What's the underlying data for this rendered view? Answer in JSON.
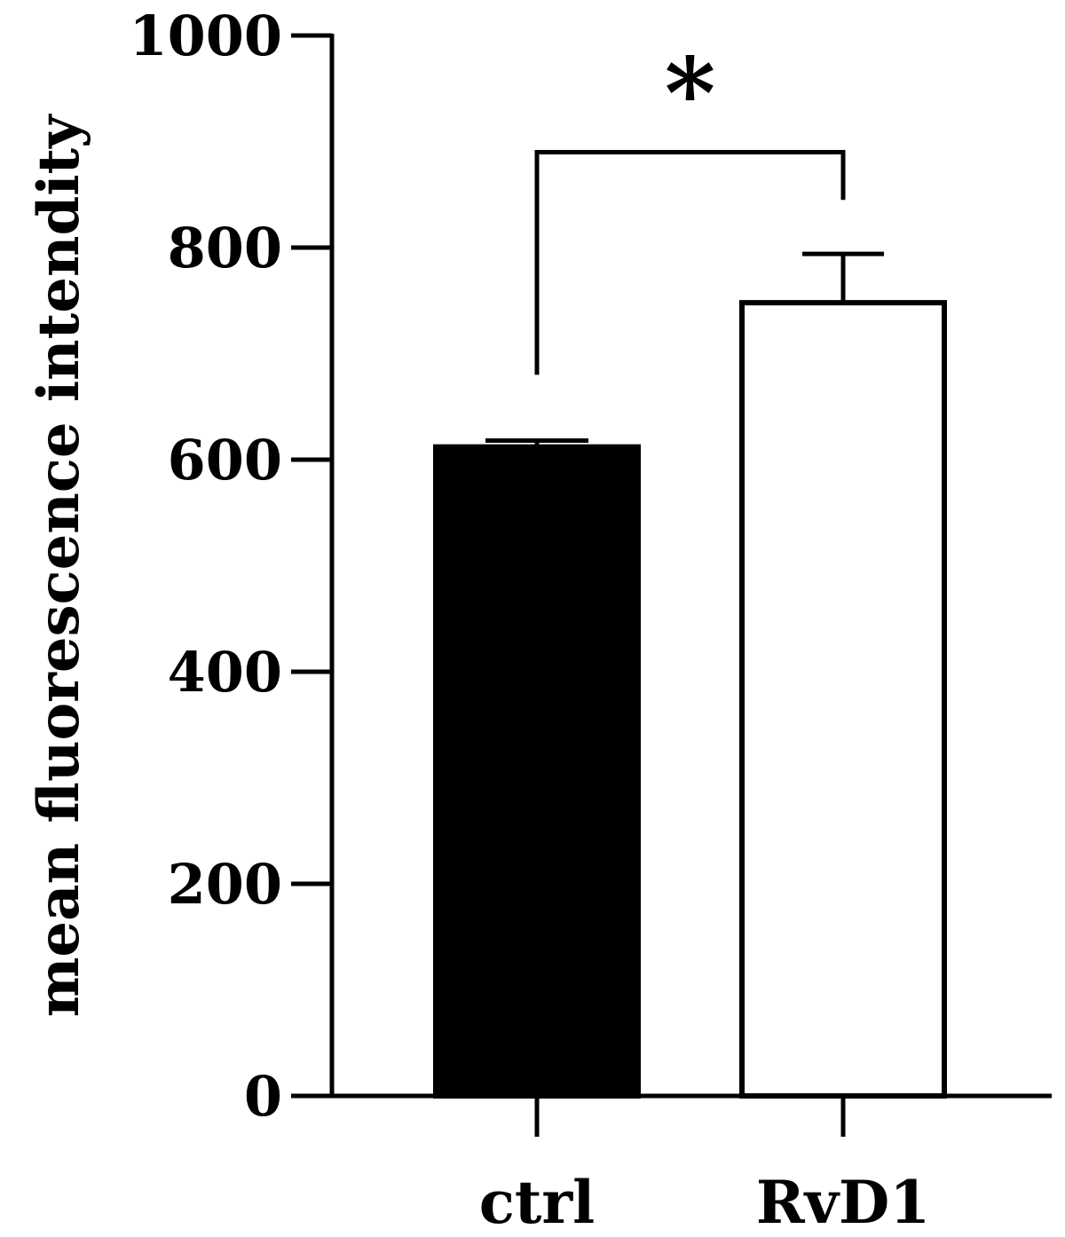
{
  "chart_data": {
    "type": "bar",
    "title": "",
    "xlabel": "",
    "ylabel": "mean fluorescence intendity",
    "ylim": [
      0,
      1000
    ],
    "yticks": [
      0,
      200,
      400,
      600,
      800,
      1000
    ],
    "ytick_labels": [
      "0",
      "200",
      "400",
      "600",
      "800",
      "1000"
    ],
    "categories": [
      "ctrl",
      "RvD1"
    ],
    "values": [
      612,
      748
    ],
    "error_plus": [
      6,
      46
    ],
    "bar_fill": [
      "#000000",
      "#ffffff"
    ],
    "bar_stroke": "#000000",
    "grid": false,
    "legend": "none",
    "annotations": [
      {
        "type": "significance-bracket",
        "from": "ctrl",
        "to": "RvD1",
        "label": "*",
        "bracket_y": 890,
        "left_drop_to": 680,
        "right_drop_to": 845
      }
    ]
  }
}
